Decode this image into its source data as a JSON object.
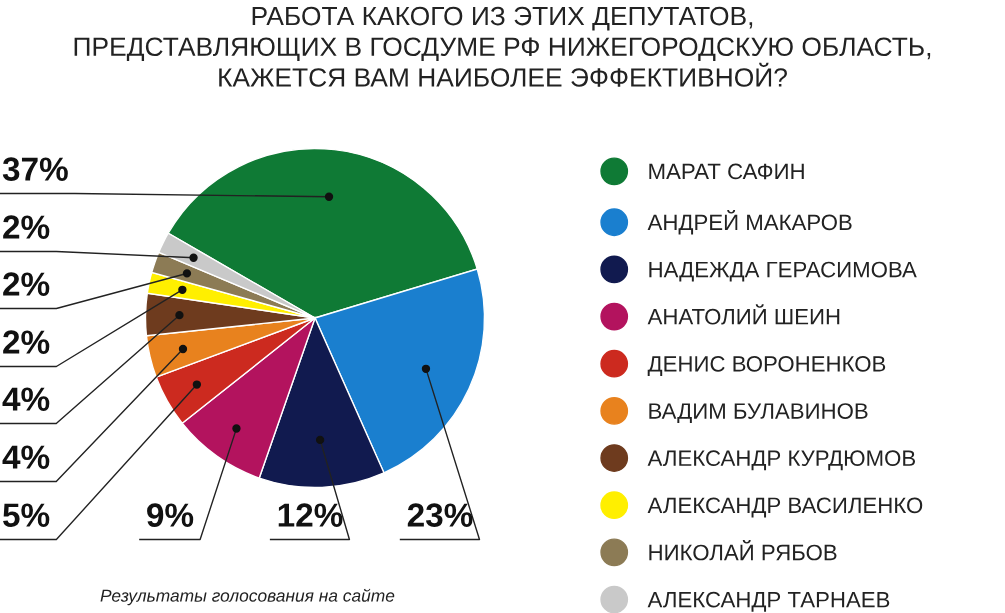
{
  "chart_data": {
    "type": "pie",
    "title": "РАБОТА КАКОГО ИЗ ЭТИХ ДЕПУТАТОВ,\nПРЕДСТАВЛЯЮЩИХ В ГОСДУМЕ РФ НИЖЕГОРОДСКУЮ ОБЛАСТЬ,\nКАЖЕТСЯ ВАМ НАИБОЛЕЕ ЭФФЕКТИВНОЙ?",
    "categories": [
      "МАРАТ САФИН",
      "АНДРЕЙ МАКАРОВ",
      "НАДЕЖДА ГЕРАСИМОВА",
      "АНАТОЛИЙ ШЕИН",
      "ДЕНИС ВОРОНЕНКОВ",
      "ВАДИМ БУЛАВИНОВ",
      "АЛЕКСАНДР КУРДЮМОВ",
      "АЛЕКСАНДР ВАСИЛЕНКО",
      "НИКОЛАЙ РЯБОВ",
      "АЛЕКСАНДР ТАРНАЕВ"
    ],
    "values": [
      37,
      23,
      12,
      9,
      5,
      4,
      4,
      2,
      2,
      2
    ],
    "value_labels": [
      "37%",
      "23%",
      "12%",
      "9%",
      "5%",
      "4%",
      "4%",
      "2%",
      "2%",
      "2%"
    ],
    "colors": [
      "#0f7a35",
      "#1a7fcf",
      "#111a4f",
      "#b3135e",
      "#cc2a1f",
      "#e8821e",
      "#6e3b1e",
      "#ffef00",
      "#8c7b55",
      "#c9c9c9"
    ],
    "legend": "right",
    "annotations": [
      "Результаты голосования на сайте"
    ]
  }
}
